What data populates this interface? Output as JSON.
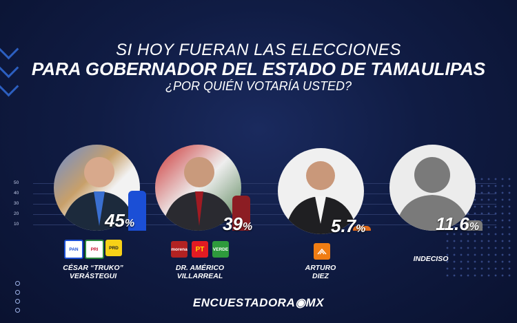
{
  "header": {
    "line1": "SI HOY FUERAN LAS ELECCIONES",
    "line2": "PARA GOBERNADOR DEL ESTADO DE TAMAULIPAS",
    "line3": "¿POR QUIÉN VOTARÍA USTED?"
  },
  "chart_data": {
    "type": "bar",
    "ylim": [
      0,
      50
    ],
    "yticks": [
      "50",
      "40",
      "30",
      "20",
      "10"
    ],
    "categories": [
      "CÉSAR “TRUKO” VERÁSTEGUI",
      "DR. AMÉRICO VILLARREAL",
      "ARTURO DIEZ",
      "INDECISO"
    ],
    "values": [
      45,
      39,
      5.7,
      11.6
    ],
    "labels": [
      "45",
      "39",
      "5.7",
      "11.6"
    ],
    "unit": "%",
    "colors": [
      "#1b4fd6",
      "#8c1d23",
      "#e06a1a",
      "#7a7a7a"
    ]
  },
  "candidates": [
    {
      "name1": "CÉSAR “TRUKO”",
      "name2": "VERÁSTEGUI",
      "parties": [
        "PAN",
        "PRI",
        "PRD"
      ]
    },
    {
      "name1": "DR. AMÉRICO",
      "name2": "VILLARREAL",
      "parties": [
        "morena",
        "PT",
        "VERDE"
      ]
    },
    {
      "name1": "ARTURO",
      "name2": "DIEZ",
      "parties": [
        "MC"
      ]
    },
    {
      "name1": "INDECISO",
      "name2": "",
      "parties": []
    }
  ],
  "brand": "ENCUESTADORA◉MX"
}
